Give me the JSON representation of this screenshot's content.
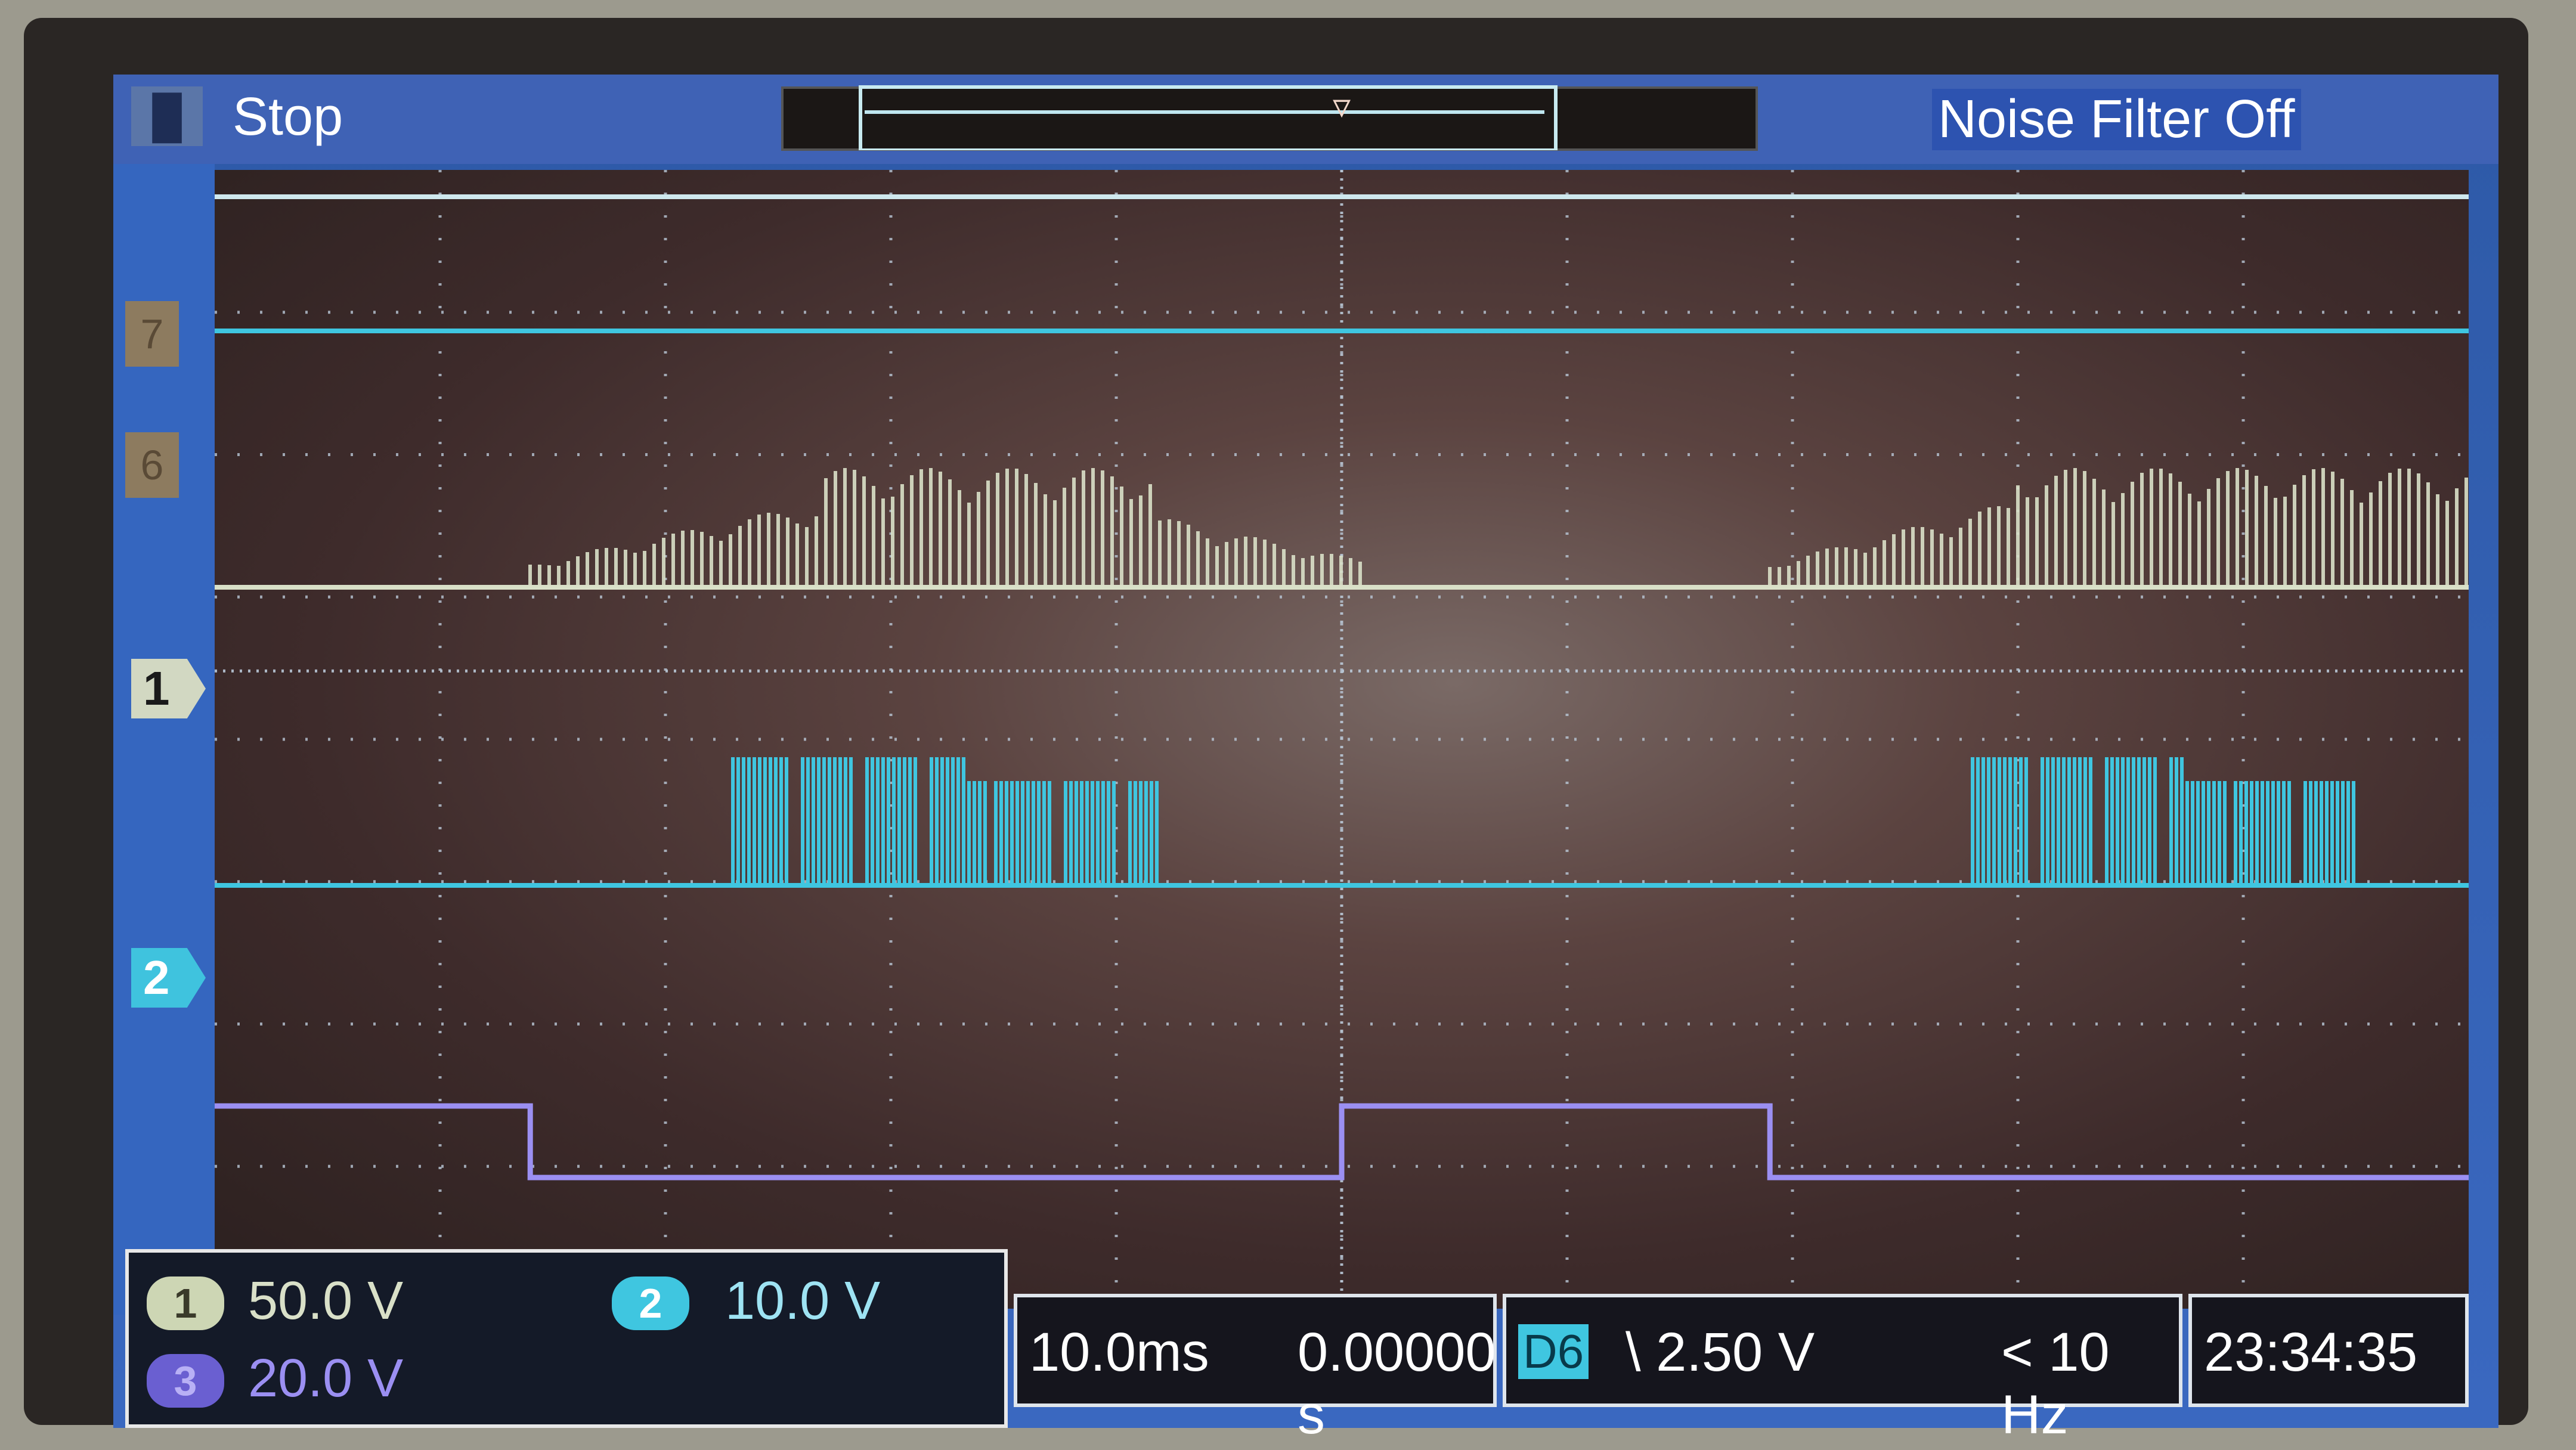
{
  "header": {
    "run_state": "Stop",
    "corner_icon": "acquisition-icon",
    "noise_filter": "Noise Filter Off",
    "trigger_marker_icon": "trigger-position-icon"
  },
  "channels": [
    {
      "id": "1",
      "scale": "50.0 V",
      "color": "#d9e0c8"
    },
    {
      "id": "2",
      "scale": "10.0 V",
      "color": "#3fc6e0"
    },
    {
      "id": "3",
      "scale": "20.0 V",
      "color": "#9b8ff2"
    }
  ],
  "digital_markers": [
    "7",
    "6"
  ],
  "timebase": {
    "per_div": "10.0ms",
    "position": "0.00000 s"
  },
  "trigger": {
    "source": "D6",
    "level": "\\ 2.50 V",
    "freq": "< 10 Hz"
  },
  "clock": "23:34:35",
  "colors": {
    "ch1": "#d9e0c8",
    "ch2": "#3fc6e0",
    "ch3": "#9b8ff2",
    "grid": "#b9c7d6",
    "digital": "#cfe8ee"
  },
  "chart_data": {
    "type": "line",
    "x_divisions": 10,
    "y_divisions": 8,
    "series": [
      {
        "name": "1",
        "bursts_div": [
          [
            1.4,
            5.1
          ],
          [
            6.9,
            10.0
          ]
        ]
      },
      {
        "name": "2",
        "bursts_div": [
          [
            2.3,
            4.2
          ],
          [
            7.8,
            9.5
          ]
        ]
      },
      {
        "name": "3",
        "high_intervals_div": [
          [
            0.0,
            1.4
          ],
          [
            5.0,
            6.9
          ]
        ]
      }
    ]
  }
}
